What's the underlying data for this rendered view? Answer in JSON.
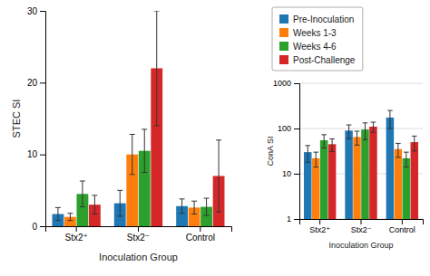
{
  "chart_data": [
    {
      "type": "bar",
      "categories": [
        "Stx2⁺",
        "Stx2⁻",
        "Control"
      ],
      "series": [
        {
          "name": "Pre-Inoculation",
          "values": [
            1.7,
            3.2,
            2.8
          ],
          "errors": [
            0.9,
            1.8,
            1.0
          ]
        },
        {
          "name": "Weeks 1-3",
          "values": [
            1.3,
            10.0,
            2.6
          ],
          "errors": [
            0.5,
            2.8,
            0.9
          ]
        },
        {
          "name": "Weeks 4-6",
          "values": [
            4.5,
            10.5,
            2.7
          ],
          "errors": [
            1.8,
            3.0,
            1.2
          ]
        },
        {
          "name": "Post-Challenge",
          "values": [
            3.0,
            22.0,
            7.0
          ],
          "errors": [
            1.3,
            8.0,
            5.0
          ]
        }
      ],
      "xlabel": "Inoculation Group",
      "ylabel": "STEC SI",
      "ylim": [
        0,
        30
      ],
      "yticks": [
        0,
        10,
        20,
        30
      ],
      "grid": false,
      "legend": "right"
    },
    {
      "type": "bar",
      "categories": [
        "Stx2⁺",
        "Stx2⁻",
        "Control"
      ],
      "series": [
        {
          "values": [
            30,
            90,
            175
          ],
          "errors": [
            12,
            30,
            75
          ]
        },
        {
          "values": [
            22,
            65,
            35
          ],
          "errors": [
            8,
            22,
            12
          ]
        },
        {
          "values": [
            55,
            95,
            22
          ],
          "errors": [
            18,
            38,
            8
          ]
        },
        {
          "values": [
            45,
            110,
            50
          ],
          "errors": [
            14,
            28,
            18
          ]
        }
      ],
      "xlabel": "Inoculation Group",
      "ylabel": "ConA SI",
      "log": "y",
      "ylim": [
        1,
        1000
      ],
      "yticks": [
        1,
        10,
        100,
        1000
      ],
      "grid": true
    }
  ]
}
